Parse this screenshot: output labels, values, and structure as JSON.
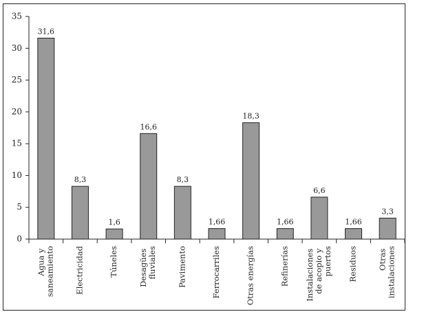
{
  "chart_data": {
    "type": "bar",
    "categories": [
      "Agua y saneamiento",
      "Electricidad",
      "Túneles",
      "Desagües fluviales",
      "Pavimento",
      "Ferrocarriles",
      "Otras energías",
      "Refinerías",
      "Instalaciones de acopio y puertos",
      "Residuos",
      "Otras instalaciones"
    ],
    "values": [
      31.6,
      8.3,
      1.6,
      16.6,
      8.3,
      1.66,
      18.3,
      1.66,
      6.6,
      1.66,
      3.3
    ],
    "value_labels": [
      "31,6",
      "8,3",
      "1,6",
      "16,6",
      "8,3",
      "1,66",
      "18,3",
      "1,66",
      "6,6",
      "1,66",
      "3,3"
    ],
    "color": "#999999",
    "ylim": [
      0,
      35
    ],
    "yticks": [
      0,
      5,
      10,
      15,
      20,
      25,
      30,
      35
    ],
    "grid": false
  }
}
